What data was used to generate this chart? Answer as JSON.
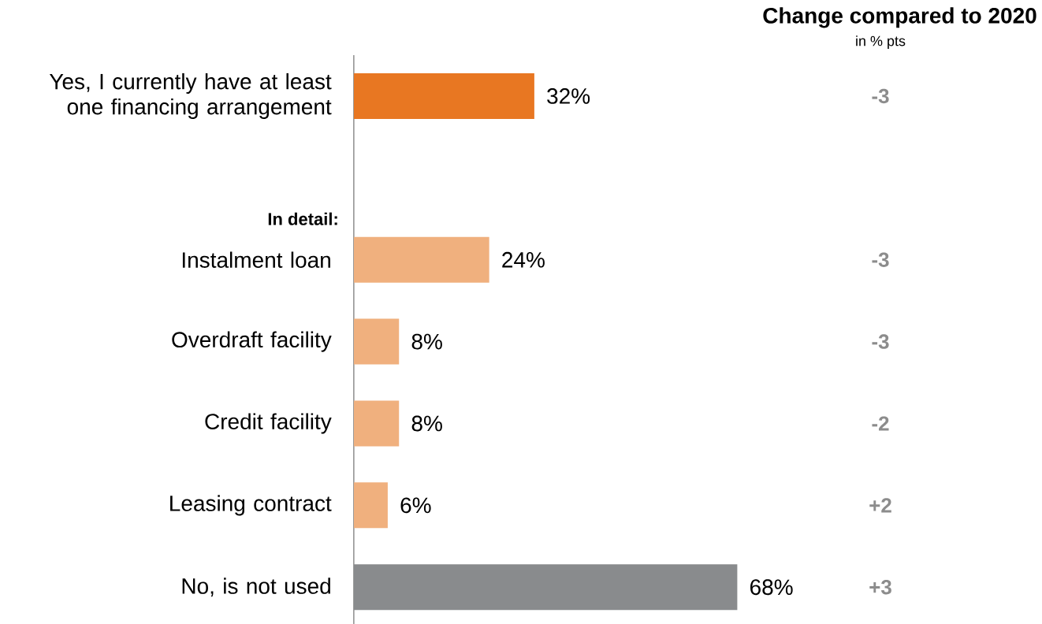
{
  "chart_data": {
    "type": "bar",
    "orientation": "horizontal",
    "title": "Change compared to 2020",
    "subtitle": "in % pts",
    "categories": [
      "Yes, I currently have at least one financing arrangement",
      null,
      "Instalment loan",
      "Overdraft facility",
      "Credit facility",
      "Leasing contract",
      "No, is not used"
    ],
    "values": [
      32,
      null,
      24,
      8,
      8,
      6,
      68
    ],
    "colors": [
      "#e87722",
      null,
      "#f0b07e",
      "#f0b07e",
      "#f0b07e",
      "#f0b07e",
      "#898b8d"
    ],
    "value_labels": [
      "32%",
      null,
      "24%",
      "8%",
      "8%",
      "6%",
      "68%"
    ],
    "annotations": [
      "In detail:",
      "-3",
      "-3",
      "-3",
      "-2",
      "+2",
      "+3"
    ]
  }
}
